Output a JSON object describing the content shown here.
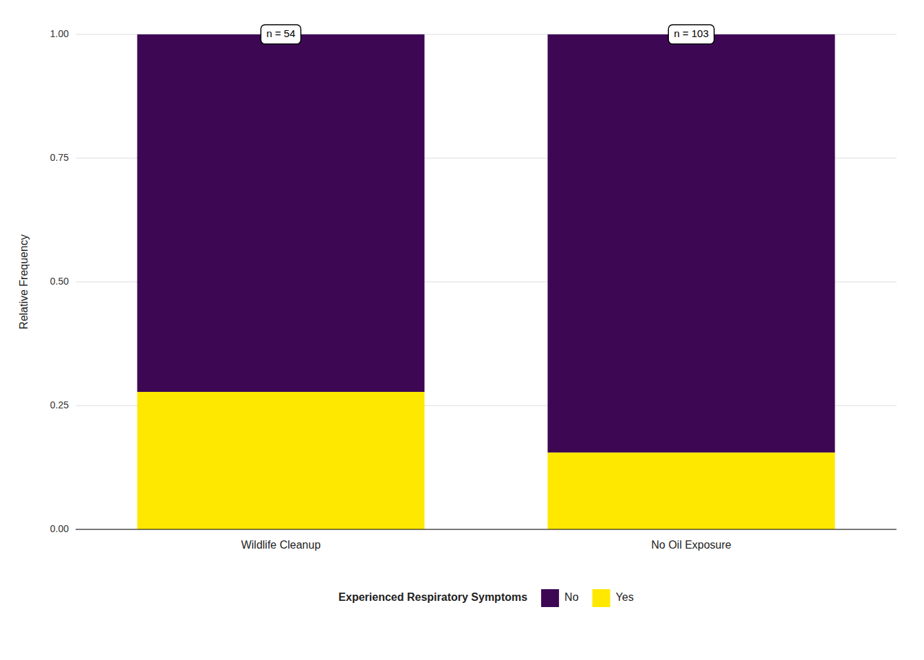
{
  "chart_data": {
    "type": "bar",
    "stacked": true,
    "y_label": "Relative Frequency",
    "categories": [
      "Wildlife Cleanup",
      "No Oil Exposure"
    ],
    "series": [
      {
        "name": "Yes",
        "color": "#FFE800",
        "values": [
          0.2778,
          0.1553
        ]
      },
      {
        "name": "No",
        "color": "#3D0754",
        "values": [
          0.7222,
          0.8447
        ]
      }
    ],
    "annotations": [
      "n = 54",
      "n = 103"
    ],
    "legend_title": "Experienced Respiratory Symptoms",
    "legend": "bottom",
    "ylim": [
      0,
      1.0
    ],
    "yticks": [
      {
        "value": 0,
        "label": "0.00"
      },
      {
        "value": 0.25,
        "label": "0.25"
      },
      {
        "value": 0.5,
        "label": "0.50"
      },
      {
        "value": 0.75,
        "label": "0.75"
      },
      {
        "value": 1.0,
        "label": "1.00"
      }
    ],
    "grid": true
  }
}
